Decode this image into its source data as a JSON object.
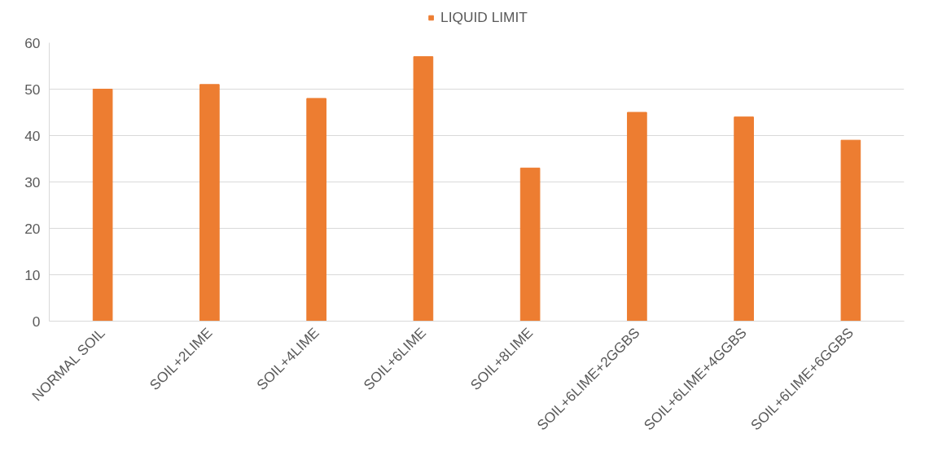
{
  "chart_data": {
    "type": "bar",
    "categories": [
      "NORMAL SOIL",
      "SOIL+2LIME",
      "SOIL+4LIME",
      "SOIL+6LIME",
      "SOIL+8LIME",
      "SOIL+6LIME+2GGBS",
      "SOIL+6LIME+4GGBS",
      "SOIL+6LIME+6GGBS"
    ],
    "series": [
      {
        "name": "LIQUID LIMIT",
        "color": "#ed7d31",
        "values": [
          50,
          51,
          48,
          57,
          33,
          45,
          44,
          39
        ]
      }
    ],
    "ylim": [
      0,
      60
    ],
    "yticks": [
      0,
      10,
      20,
      30,
      40,
      50,
      60
    ],
    "grid": "y",
    "legend": "top"
  }
}
